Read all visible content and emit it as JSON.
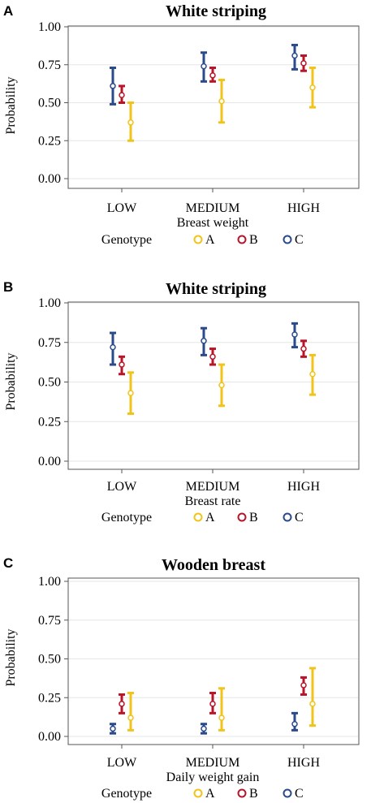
{
  "colors": {
    "A": "#f2c318",
    "B": "#b5162a",
    "C": "#2a4a8c"
  },
  "legend": {
    "title": "Genotype",
    "items": [
      "A",
      "B",
      "C"
    ]
  },
  "chart_data": [
    {
      "panel": "A",
      "type": "scatter",
      "title": "White striping",
      "xlabel": "Breast weight",
      "ylabel": "Probability",
      "categories": [
        "LOW",
        "MEDIUM",
        "HIGH"
      ],
      "ylim": [
        0,
        1
      ],
      "yticks": [
        "0.00",
        "0.25",
        "0.50",
        "0.75",
        "1.00"
      ],
      "grid": true,
      "legend_position": "bottom",
      "series": [
        {
          "name": "C",
          "values": [
            0.61,
            0.74,
            0.81
          ],
          "lower": [
            0.49,
            0.64,
            0.72
          ],
          "upper": [
            0.73,
            0.83,
            0.88
          ]
        },
        {
          "name": "B",
          "values": [
            0.55,
            0.68,
            0.76
          ],
          "lower": [
            0.5,
            0.64,
            0.71
          ],
          "upper": [
            0.61,
            0.73,
            0.81
          ]
        },
        {
          "name": "A",
          "values": [
            0.37,
            0.51,
            0.6
          ],
          "lower": [
            0.25,
            0.37,
            0.47
          ],
          "upper": [
            0.5,
            0.65,
            0.73
          ]
        }
      ]
    },
    {
      "panel": "B",
      "type": "scatter",
      "title": "White striping",
      "xlabel": "Breast rate",
      "ylabel": "Probability",
      "categories": [
        "LOW",
        "MEDIUM",
        "HIGH"
      ],
      "ylim": [
        0,
        1
      ],
      "yticks": [
        "0.00",
        "0.25",
        "0.50",
        "0.75",
        "1.00"
      ],
      "grid": true,
      "legend_position": "bottom",
      "series": [
        {
          "name": "C",
          "values": [
            0.72,
            0.76,
            0.8
          ],
          "lower": [
            0.61,
            0.67,
            0.72
          ],
          "upper": [
            0.81,
            0.84,
            0.87
          ]
        },
        {
          "name": "B",
          "values": [
            0.61,
            0.66,
            0.71
          ],
          "lower": [
            0.55,
            0.61,
            0.66
          ],
          "upper": [
            0.66,
            0.71,
            0.76
          ]
        },
        {
          "name": "A",
          "values": [
            0.43,
            0.48,
            0.55
          ],
          "lower": [
            0.3,
            0.35,
            0.42
          ],
          "upper": [
            0.56,
            0.61,
            0.67
          ]
        }
      ]
    },
    {
      "panel": "C",
      "type": "scatter",
      "title": "Wooden breast",
      "xlabel": "Daily weight gain",
      "ylabel": "Probability",
      "categories": [
        "LOW",
        "MEDIUM",
        "HIGH"
      ],
      "ylim": [
        0,
        1
      ],
      "yticks": [
        "0.00",
        "0.25",
        "0.50",
        "0.75",
        "1.00"
      ],
      "grid": true,
      "legend_position": "bottom",
      "series": [
        {
          "name": "C",
          "values": [
            0.05,
            0.05,
            0.08
          ],
          "lower": [
            0.02,
            0.02,
            0.04
          ],
          "upper": [
            0.08,
            0.08,
            0.15
          ]
        },
        {
          "name": "B",
          "values": [
            0.21,
            0.21,
            0.33
          ],
          "lower": [
            0.15,
            0.15,
            0.27
          ],
          "upper": [
            0.27,
            0.28,
            0.38
          ]
        },
        {
          "name": "A",
          "values": [
            0.12,
            0.12,
            0.21
          ],
          "lower": [
            0.04,
            0.04,
            0.07
          ],
          "upper": [
            0.28,
            0.31,
            0.44
          ]
        }
      ]
    }
  ]
}
